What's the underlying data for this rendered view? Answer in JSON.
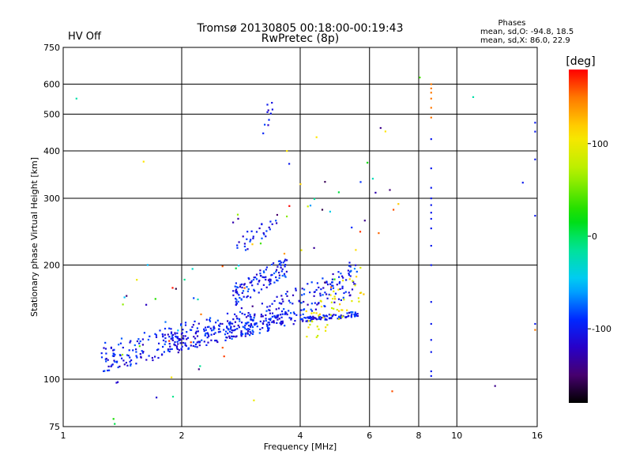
{
  "header": {
    "title_line1": "Tromsø 20130805 00:18:00-00:19:43",
    "title_line2": "RwPretec (8p)",
    "status": "HV Off",
    "status_color": "#cc0000",
    "phases_heading": "Phases",
    "phases_o": "mean, sd,O: -94.8, 18.5",
    "phases_x": "mean, sd,X: 86.0, 22.9"
  },
  "chart_data": {
    "type": "scatter",
    "xlabel": "Frequency [MHz]",
    "ylabel": "Stationary phase Virtual Height [km]",
    "xscale": "log",
    "yscale": "log",
    "xlim": [
      1,
      16
    ],
    "ylim": [
      75,
      750
    ],
    "xticks": [
      1,
      2,
      4,
      6,
      8,
      10,
      16
    ],
    "yticks": [
      75,
      100,
      200,
      300,
      400,
      500,
      600,
      750
    ],
    "grid": true,
    "colorbar": {
      "label": "[deg]",
      "range": [
        -180,
        180
      ],
      "ticks": [
        100,
        0,
        -100
      ],
      "colormap": "rainbow (black-violet-blue-cyan-green-yellow-red)"
    },
    "clusters": [
      {
        "id": "o-low-band",
        "phase": -100,
        "x": [
          1.25,
          3.0
        ],
        "y": [
          108,
          150
        ],
        "n": 220
      },
      {
        "id": "o-band-2",
        "phase": -100,
        "x": [
          1.8,
          3.6
        ],
        "y": [
          120,
          150
        ],
        "n": 120
      },
      {
        "id": "o-band-3",
        "phase": -100,
        "x": [
          2.6,
          3.9
        ],
        "y": [
          128,
          150
        ],
        "n": 60
      },
      {
        "id": "o-upper-arc",
        "phase": -100,
        "x": [
          2.7,
          3.7
        ],
        "y": [
          160,
          205
        ],
        "n": 110
      },
      {
        "id": "o-mid-arc",
        "phase": -100,
        "x": [
          3.2,
          5.6
        ],
        "y": [
          138,
          195
        ],
        "n": 150
      },
      {
        "id": "o-far-band",
        "phase": -100,
        "x": [
          4.0,
          5.6
        ],
        "y": [
          142,
          150
        ],
        "n": 90
      },
      {
        "id": "x-trace",
        "phase": 100,
        "x": [
          4.1,
          5.9
        ],
        "y": [
          128,
          195
        ],
        "n": 55
      },
      {
        "id": "o-f-layer-2-3",
        "phase": -100,
        "x": [
          2.7,
          3.5
        ],
        "y": [
          215,
          265
        ],
        "n": 30
      },
      {
        "id": "o-f-layer-high",
        "phase": -100,
        "x": [
          3.2,
          3.4
        ],
        "y": [
          440,
          530
        ],
        "n": 9
      },
      {
        "id": "scatter-noise",
        "phase": 0,
        "x": [
          1.3,
          7.0
        ],
        "y": [
          90,
          420
        ],
        "n": 70
      }
    ],
    "points": [
      {
        "x": 1.08,
        "y": 550,
        "phase": -20
      },
      {
        "x": 1.6,
        "y": 375,
        "phase": 110
      },
      {
        "x": 1.9,
        "y": 90,
        "phase": -10
      },
      {
        "x": 3.05,
        "y": 88,
        "phase": 100
      },
      {
        "x": 3.3,
        "y": 530,
        "phase": -100
      },
      {
        "x": 3.75,
        "y": 370,
        "phase": -100
      },
      {
        "x": 3.7,
        "y": 400,
        "phase": 110
      },
      {
        "x": 4.4,
        "y": 435,
        "phase": 110
      },
      {
        "x": 4.55,
        "y": 280,
        "phase": -160
      },
      {
        "x": 6.4,
        "y": 460,
        "phase": -140
      },
      {
        "x": 6.9,
        "y": 280,
        "phase": 160
      },
      {
        "x": 6.85,
        "y": 93,
        "phase": 160
      },
      {
        "x": 7.1,
        "y": 290,
        "phase": 120
      },
      {
        "x": 8.05,
        "y": 625,
        "phase": 40
      },
      {
        "x": 11.0,
        "y": 555,
        "phase": -20
      },
      {
        "x": 12.5,
        "y": 96,
        "phase": -140
      },
      {
        "x": 14.7,
        "y": 330,
        "phase": -100
      }
    ],
    "series": [
      {
        "x": 8.6,
        "phase": -100,
        "y": [
          102,
          105,
          118,
          127,
          140,
          160,
          200,
          225,
          250,
          265,
          275,
          288,
          300,
          320,
          360,
          430
        ]
      },
      {
        "x": 8.6,
        "phase": 150,
        "y": [
          490,
          520,
          550,
          570,
          585,
          600
        ]
      },
      {
        "x": 15.8,
        "phase": -100,
        "y": [
          140,
          270,
          380,
          450,
          475
        ]
      },
      {
        "x": 15.8,
        "phase": 150,
        "y": [
          135
        ]
      }
    ]
  }
}
